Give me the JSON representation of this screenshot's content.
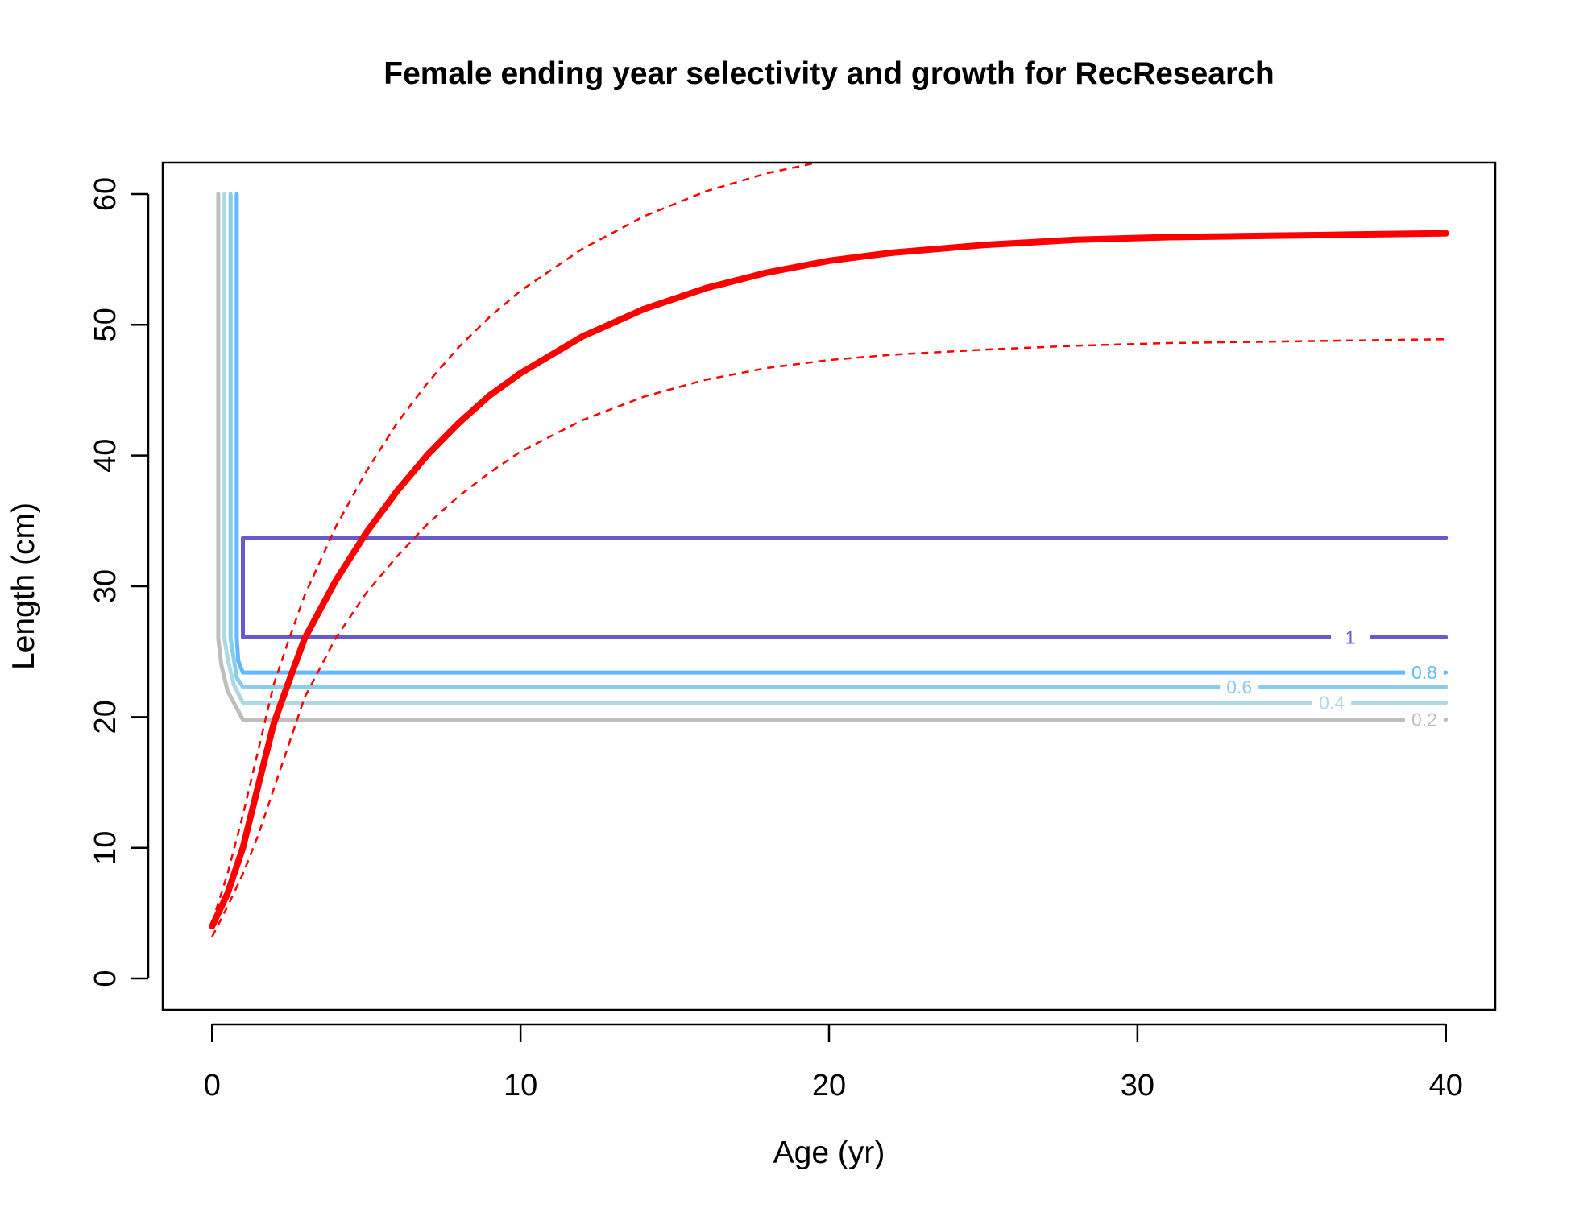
{
  "chart_data": {
    "type": "line",
    "title": "Female ending year selectivity and growth for RecResearch",
    "xlabel": "Age (yr)",
    "ylabel": "Length (cm)",
    "xlim": [
      -1.6,
      41.6
    ],
    "ylim": [
      -2.4,
      62.4
    ],
    "xticks": [
      0,
      10,
      20,
      30,
      40
    ],
    "yticks": [
      0,
      10,
      20,
      30,
      40,
      50,
      60
    ],
    "grid": false,
    "growth": {
      "mean": {
        "color": "#ff0000",
        "x": [
          0,
          0.5,
          1,
          1.5,
          2,
          2.5,
          3,
          4,
          5,
          6,
          7,
          8,
          9,
          10,
          12,
          14,
          16,
          18,
          20,
          22,
          25,
          28,
          31,
          34,
          37,
          40
        ],
        "y": [
          4.0,
          6.5,
          10.0,
          14.8,
          19.5,
          22.8,
          26.0,
          30.4,
          34.1,
          37.3,
          40.1,
          42.5,
          44.6,
          46.3,
          49.1,
          51.2,
          52.8,
          54.0,
          54.9,
          55.5,
          56.1,
          56.5,
          56.7,
          56.8,
          56.9,
          57.0
        ]
      },
      "upper": {
        "color": "#ff0000",
        "x": [
          0,
          0.5,
          1,
          1.5,
          2,
          2.5,
          3,
          4,
          5,
          6,
          7,
          8,
          9,
          10,
          12,
          14,
          16,
          18,
          20
        ],
        "y": [
          4.3,
          8.0,
          12.5,
          17.5,
          22.5,
          26.0,
          29.3,
          34.5,
          38.8,
          42.5,
          45.6,
          48.3,
          50.6,
          52.6,
          55.8,
          58.3,
          60.2,
          61.6,
          62.6
        ]
      },
      "lower": {
        "color": "#ff0000",
        "x": [
          0,
          0.5,
          1,
          1.5,
          2,
          2.5,
          3,
          4,
          5,
          6,
          7,
          8,
          9,
          10,
          12,
          14,
          16,
          18,
          20,
          22,
          25,
          28,
          31,
          34,
          37,
          40
        ],
        "y": [
          3.2,
          5.5,
          8.0,
          11.0,
          14.5,
          18.0,
          21.5,
          26.0,
          29.5,
          32.3,
          34.8,
          36.9,
          38.7,
          40.3,
          42.7,
          44.5,
          45.8,
          46.7,
          47.3,
          47.7,
          48.1,
          48.4,
          48.6,
          48.7,
          48.8,
          48.9
        ]
      }
    },
    "selectivity_contours": [
      {
        "level": "0.2",
        "color": "#bebebe",
        "x": [
          0.2,
          0.2,
          0.3,
          0.5,
          1.0,
          40
        ],
        "y": [
          60,
          26,
          24,
          22,
          19.8,
          19.8
        ],
        "label_x": 39.3,
        "label_y": 19.8
      },
      {
        "level": "0.4",
        "color": "#add8e6",
        "x": [
          0.4,
          0.4,
          0.5,
          0.7,
          1.0,
          40
        ],
        "y": [
          60,
          26,
          24.5,
          22.5,
          21.1,
          21.1
        ],
        "label_x": 36.3,
        "label_y": 21.1
      },
      {
        "level": "0.6",
        "color": "#87ceeb",
        "x": [
          0.6,
          0.6,
          0.7,
          0.8,
          1.0,
          40
        ],
        "y": [
          60,
          26,
          24.5,
          23.0,
          22.3,
          22.3
        ],
        "label_x": 33.3,
        "label_y": 22.3
      },
      {
        "level": "0.8",
        "color": "#63b8ff",
        "x": [
          0.8,
          0.8,
          0.85,
          1.0,
          40
        ],
        "y": [
          60,
          26,
          24.3,
          23.4,
          23.4
        ],
        "label_x": 39.3,
        "label_y": 23.4
      },
      {
        "level": "1",
        "color": "#6a5acd",
        "x": [
          40,
          1.0,
          1.0,
          40
        ],
        "y": [
          33.7,
          33.7,
          26.1,
          26.1
        ],
        "label_x": 36.9,
        "label_y": 26.1
      }
    ]
  }
}
